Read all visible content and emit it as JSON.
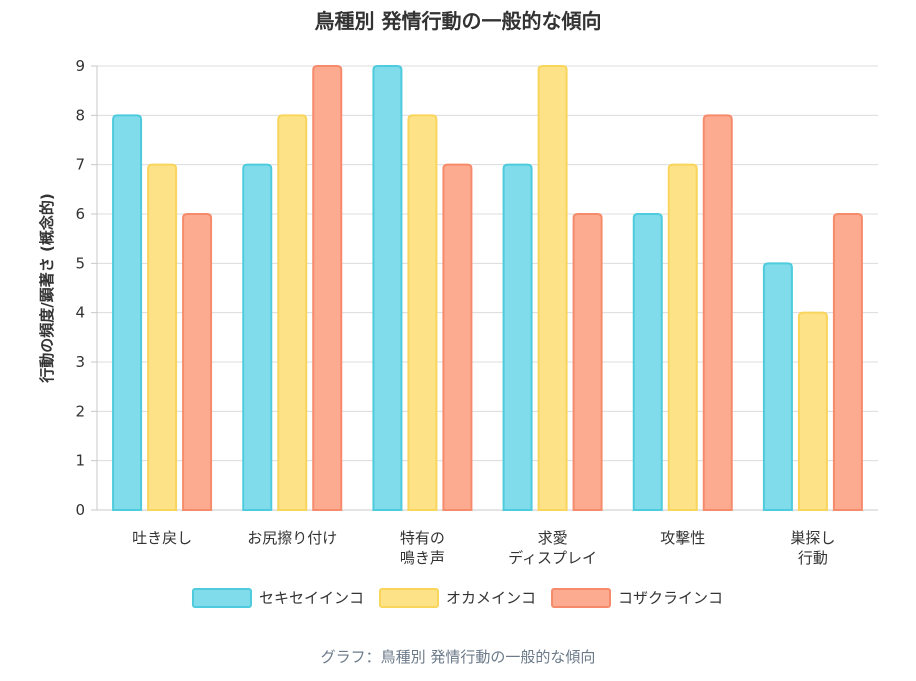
{
  "chart_data": {
    "type": "bar",
    "title": "鳥種別 発情行動の一般的な傾向",
    "ylabel": "行動の頻度/顕著さ (概念的)",
    "xlabel": "",
    "ylim": [
      0,
      9
    ],
    "yticks": [
      "0",
      "1",
      "2",
      "3",
      "4",
      "5",
      "6",
      "7",
      "8",
      "9"
    ],
    "grid": true,
    "legend_position": "bottom",
    "categories": [
      [
        "吐き戻し"
      ],
      [
        "お尻擦り付け"
      ],
      [
        "特有の",
        "鳴き声"
      ],
      [
        "求愛",
        "ディスプレイ"
      ],
      [
        "攻撃性"
      ],
      [
        "巣探し",
        "行動"
      ]
    ],
    "series": [
      {
        "name": "セキセイインコ",
        "values": [
          8,
          7,
          9,
          7,
          6,
          5
        ],
        "fill": "#80dceb",
        "stroke": "#4ecbdc"
      },
      {
        "name": "オカメインコ",
        "values": [
          7,
          8,
          8,
          9,
          7,
          4
        ],
        "fill": "#fde287",
        "stroke": "#f9d55c"
      },
      {
        "name": "コザクラインコ",
        "values": [
          6,
          9,
          7,
          6,
          8,
          6
        ],
        "fill": "#fcab91",
        "stroke": "#f58b6b"
      }
    ]
  },
  "caption": "グラフ：鳥種別 発情行動の一般的な傾向"
}
